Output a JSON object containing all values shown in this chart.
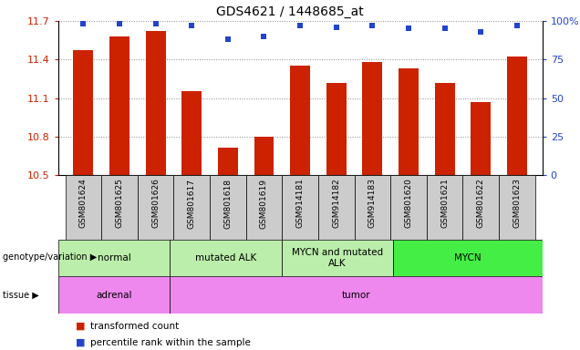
{
  "title": "GDS4621 / 1448685_at",
  "samples": [
    "GSM801624",
    "GSM801625",
    "GSM801626",
    "GSM801617",
    "GSM801618",
    "GSM801619",
    "GSM914181",
    "GSM914182",
    "GSM914183",
    "GSM801620",
    "GSM801621",
    "GSM801622",
    "GSM801623"
  ],
  "bar_values": [
    11.47,
    11.58,
    11.62,
    11.15,
    10.71,
    10.8,
    11.35,
    11.22,
    11.38,
    11.33,
    11.22,
    11.07,
    11.42
  ],
  "percentile_values": [
    98,
    98,
    98,
    97,
    88,
    90,
    97,
    96,
    97,
    95,
    95,
    93,
    97
  ],
  "ylim_left": [
    10.5,
    11.7
  ],
  "ylim_right": [
    0,
    100
  ],
  "yticks_left": [
    10.5,
    10.8,
    11.1,
    11.4,
    11.7
  ],
  "ytick_labels_left": [
    "10.5",
    "10.8",
    "11.1",
    "11.4",
    "11.7"
  ],
  "yticks_right": [
    0,
    25,
    50,
    75,
    100
  ],
  "ytick_labels_right": [
    "0",
    "25",
    "50",
    "75",
    "100%"
  ],
  "bar_color": "#cc2200",
  "dot_color": "#2244cc",
  "bar_width": 0.55,
  "grid_color": "#888888",
  "tick_bg": "#cccccc",
  "geno_groups": [
    {
      "label": "normal",
      "start": 0,
      "end": 3,
      "color": "#bbeeaa"
    },
    {
      "label": "mutated ALK",
      "start": 3,
      "end": 6,
      "color": "#bbeeaa"
    },
    {
      "label": "MYCN and mutated\nALK",
      "start": 6,
      "end": 9,
      "color": "#bbeeaa"
    },
    {
      "label": "MYCN",
      "start": 9,
      "end": 13,
      "color": "#44ee44"
    }
  ],
  "tissue_groups": [
    {
      "label": "adrenal",
      "start": 0,
      "end": 3,
      "color": "#ee88ee"
    },
    {
      "label": "tumor",
      "start": 3,
      "end": 13,
      "color": "#ee88ee"
    }
  ]
}
